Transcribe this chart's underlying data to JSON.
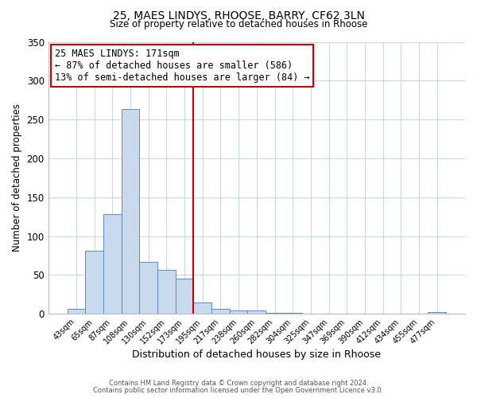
{
  "title_line1": "25, MAES LINDYS, RHOOSE, BARRY, CF62 3LN",
  "title_line2": "Size of property relative to detached houses in Rhoose",
  "xlabel": "Distribution of detached houses by size in Rhoose",
  "ylabel": "Number of detached properties",
  "bar_labels": [
    "43sqm",
    "65sqm",
    "87sqm",
    "108sqm",
    "130sqm",
    "152sqm",
    "173sqm",
    "195sqm",
    "217sqm",
    "238sqm",
    "260sqm",
    "282sqm",
    "304sqm",
    "325sqm",
    "347sqm",
    "369sqm",
    "390sqm",
    "412sqm",
    "434sqm",
    "455sqm",
    "477sqm"
  ],
  "bar_values": [
    6,
    81,
    128,
    263,
    67,
    57,
    45,
    15,
    6,
    4,
    4,
    1,
    1,
    0,
    0,
    0,
    0,
    0,
    0,
    0,
    2
  ],
  "bar_color": "#c9d9ee",
  "bar_edge_color": "#5a8ac6",
  "vline_color": "#cc0000",
  "ylim": [
    0,
    350
  ],
  "yticks": [
    0,
    50,
    100,
    150,
    200,
    250,
    300,
    350
  ],
  "annotation_title": "25 MAES LINDYS: 171sqm",
  "annotation_line1": "← 87% of detached houses are smaller (586)",
  "annotation_line2": "13% of semi-detached houses are larger (84) →",
  "annotation_box_color": "#ffffff",
  "annotation_border_color": "#cc0000",
  "footer_line1": "Contains HM Land Registry data © Crown copyright and database right 2024.",
  "footer_line2": "Contains public sector information licensed under the Open Government Licence v3.0.",
  "bg_color": "#ffffff",
  "grid_color": "#c8d8ec"
}
